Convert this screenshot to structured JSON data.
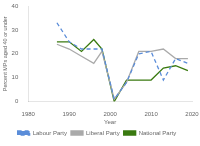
{
  "chart_data": {
    "type": "line",
    "x": [
      1987,
      1990,
      1993,
      1996,
      1998,
      2001,
      2004,
      2007,
      2010,
      2013,
      2016,
      2019
    ],
    "series": [
      {
        "name": "Labour Party",
        "color": "#5b8dd9",
        "line_style": "dashed",
        "values": [
          33,
          25,
          22,
          22,
          22,
          1,
          8,
          20,
          21,
          9,
          18,
          16
        ]
      },
      {
        "name": "Liberal Party",
        "color": "#aaaaaa",
        "line_style": "solid",
        "values": [
          24,
          22,
          19,
          16,
          21,
          1,
          8,
          21,
          21,
          22,
          18,
          18
        ]
      },
      {
        "name": "National Party",
        "color": "#3a7a10",
        "line_style": "solid",
        "values": [
          25,
          25,
          21,
          26,
          22,
          0,
          9,
          9,
          9,
          14,
          15,
          13
        ]
      }
    ],
    "xlim": [
      1980,
      2020
    ],
    "xticks": [
      1980,
      1990,
      2000,
      2010,
      2020
    ],
    "ylim": [
      0,
      40
    ],
    "yticks": [
      0,
      10,
      20,
      30,
      40
    ],
    "xlabel": "Year",
    "ylabel": "Percent MPs aged 40 or under",
    "grid": false,
    "legend": "bottom"
  }
}
